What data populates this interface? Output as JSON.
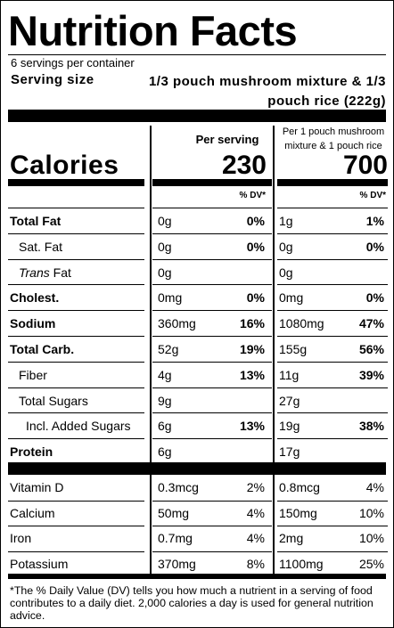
{
  "title": "Nutrition Facts",
  "servings_per_container": "6 servings per container",
  "serving_size_label": "Serving size",
  "serving_size_value": "1/3 pouch mushroom mixture & 1/3 pouch rice (222g)",
  "columns": {
    "per_serving": "Per serving",
    "per_pouch_line1": "Per 1 pouch mushroom",
    "per_pouch_line2": "mixture & 1 pouch rice"
  },
  "calories": {
    "label": "Calories",
    "per_serving": "230",
    "per_pouch": "700"
  },
  "dv_header": "% DV*",
  "nutrients": [
    {
      "name": "Total Fat",
      "bold": true,
      "indent": 0,
      "amount_serving": "0g",
      "dv_serving": "0%",
      "amount_pouch": "1g",
      "dv_pouch": "1%"
    },
    {
      "name": "Sat. Fat",
      "bold": false,
      "indent": 1,
      "amount_serving": "0g",
      "dv_serving": "0%",
      "amount_pouch": "0g",
      "dv_pouch": "0%"
    },
    {
      "name_italic": "Trans",
      "name": " Fat",
      "bold": false,
      "indent": 1,
      "amount_serving": "0g",
      "dv_serving": "",
      "amount_pouch": "0g",
      "dv_pouch": ""
    },
    {
      "name": "Cholest.",
      "bold": true,
      "indent": 0,
      "amount_serving": "0mg",
      "dv_serving": "0%",
      "amount_pouch": "0mg",
      "dv_pouch": "0%"
    },
    {
      "name": "Sodium",
      "bold": true,
      "indent": 0,
      "amount_serving": "360mg",
      "dv_serving": "16%",
      "amount_pouch": "1080mg",
      "dv_pouch": "47%"
    },
    {
      "name": "Total Carb.",
      "bold": true,
      "indent": 0,
      "amount_serving": "52g",
      "dv_serving": "19%",
      "amount_pouch": "155g",
      "dv_pouch": "56%"
    },
    {
      "name": "Fiber",
      "bold": false,
      "indent": 1,
      "amount_serving": "4g",
      "dv_serving": "13%",
      "amount_pouch": "11g",
      "dv_pouch": "39%"
    },
    {
      "name": "Total Sugars",
      "bold": false,
      "indent": 1,
      "amount_serving": "9g",
      "dv_serving": "",
      "amount_pouch": "27g",
      "dv_pouch": ""
    },
    {
      "name": "Incl. Added Sugars",
      "bold": false,
      "indent": 2,
      "amount_serving": "6g",
      "dv_serving": "13%",
      "amount_pouch": "19g",
      "dv_pouch": "38%"
    },
    {
      "name": "Protein",
      "bold": true,
      "indent": 0,
      "amount_serving": "6g",
      "dv_serving": "",
      "amount_pouch": "17g",
      "dv_pouch": ""
    }
  ],
  "vitamins": [
    {
      "name": "Vitamin D",
      "amount_serving": "0.3mcg",
      "dv_serving": "2%",
      "amount_pouch": "0.8mcg",
      "dv_pouch": "4%"
    },
    {
      "name": "Calcium",
      "amount_serving": "50mg",
      "dv_serving": "4%",
      "amount_pouch": "150mg",
      "dv_pouch": "10%"
    },
    {
      "name": "Iron",
      "amount_serving": "0.7mg",
      "dv_serving": "4%",
      "amount_pouch": "2mg",
      "dv_pouch": "10%"
    },
    {
      "name": "Potassium",
      "amount_serving": "370mg",
      "dv_serving": "8%",
      "amount_pouch": "1100mg",
      "dv_pouch": "25%"
    }
  ],
  "footnote": "*The % Daily Value (DV) tells you how much a nutrient in a serving of food contributes to a daily diet. 2,000 calories a day is used for general nutrition advice."
}
